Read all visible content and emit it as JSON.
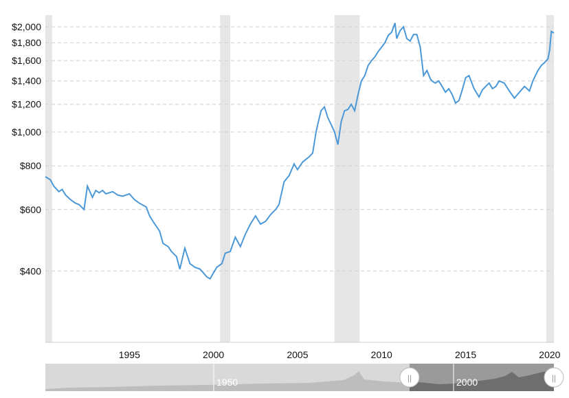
{
  "chart_data": {
    "type": "line",
    "title": "",
    "xlabel": "",
    "ylabel": "",
    "log_scale": true,
    "x_range": [
      1990.0,
      2020.25
    ],
    "ylim": [
      250,
      2160
    ],
    "y_ticks": [
      400,
      600,
      800,
      1000,
      1200,
      1400,
      1600,
      1800,
      2000
    ],
    "y_tick_labels": [
      "$400",
      "$600",
      "$800",
      "$1,000",
      "$1,200",
      "$1,400",
      "$1,600",
      "$1,800",
      "$2,000"
    ],
    "x_ticks": [
      1995,
      2000,
      2005,
      2010,
      2015,
      2020
    ],
    "x_tick_labels": [
      "1995",
      "2000",
      "2005",
      "2010",
      "2015",
      "2020"
    ],
    "grid": "horizontal dashed",
    "line_color": "#4a98d8",
    "recession_color": "#e6e6e6",
    "recession_periods": [
      [
        1990.0,
        1990.4
      ],
      [
        2000.4,
        2001.0
      ],
      [
        2007.2,
        2008.7
      ],
      [
        2019.8,
        2020.25
      ]
    ],
    "series": [
      {
        "x": [
          1990.0,
          1990.3,
          1990.5,
          1990.8,
          1991.0,
          1991.2,
          1991.5,
          1991.8,
          1992.0,
          1992.3,
          1992.5,
          1992.8,
          1993.0,
          1993.2,
          1993.4,
          1993.6,
          1993.8,
          1994.0,
          1994.3,
          1994.6,
          1995.0,
          1995.3,
          1995.6,
          1996.0,
          1996.2,
          1996.4,
          1996.8,
          1997.0,
          1997.3,
          1997.5,
          1997.8,
          1998.0,
          1998.3,
          1998.6,
          1998.9,
          1999.2,
          1999.4,
          1999.6,
          1999.8,
          2000.0,
          2000.2,
          2000.5,
          2000.7,
          2001.0,
          2001.3,
          2001.6,
          2001.9,
          2002.2,
          2002.5,
          2002.8,
          2003.1,
          2003.4,
          2003.7,
          2003.9,
          2004.2,
          2004.5,
          2004.8,
          2005.0,
          2005.3,
          2005.5,
          2005.7,
          2005.9,
          2006.1,
          2006.2,
          2006.4,
          2006.6,
          2006.8,
          2007.0,
          2007.2,
          2007.4,
          2007.6,
          2007.8,
          2008.0,
          2008.2,
          2008.4,
          2008.6,
          2008.8,
          2009.0,
          2009.2,
          2009.4,
          2009.6,
          2009.8,
          2010.0,
          2010.2,
          2010.4,
          2010.6,
          2010.8,
          2010.9,
          2011.0,
          2011.1,
          2011.3,
          2011.5,
          2011.7,
          2011.9,
          2012.1,
          2012.3,
          2012.5,
          2012.7,
          2012.9,
          2013.0,
          2013.2,
          2013.4,
          2013.6,
          2013.8,
          2014.0,
          2014.2,
          2014.4,
          2014.6,
          2014.8,
          2015.0,
          2015.2,
          2015.5,
          2015.8,
          2016.0,
          2016.2,
          2016.4,
          2016.6,
          2016.8,
          2017.0,
          2017.3,
          2017.6,
          2017.9,
          2018.2,
          2018.5,
          2018.8,
          2019.0,
          2019.3,
          2019.5,
          2019.7,
          2019.9,
          2020.0,
          2020.1,
          2020.25
        ],
        "values": [
          745,
          730,
          700,
          675,
          685,
          660,
          640,
          625,
          620,
          600,
          700,
          650,
          680,
          670,
          680,
          665,
          670,
          675,
          660,
          655,
          665,
          640,
          625,
          610,
          575,
          555,
          520,
          480,
          470,
          455,
          440,
          405,
          465,
          420,
          410,
          405,
          395,
          385,
          380,
          395,
          410,
          420,
          450,
          455,
          500,
          470,
          510,
          545,
          575,
          545,
          555,
          580,
          600,
          620,
          720,
          750,
          810,
          780,
          820,
          835,
          850,
          870,
          1000,
          1050,
          1150,
          1180,
          1100,
          1050,
          1000,
          920,
          1070,
          1150,
          1160,
          1200,
          1150,
          1280,
          1400,
          1450,
          1550,
          1600,
          1640,
          1700,
          1750,
          1800,
          1890,
          1930,
          2050,
          1850,
          1900,
          1950,
          2000,
          1850,
          1820,
          1900,
          1900,
          1750,
          1450,
          1500,
          1420,
          1400,
          1380,
          1400,
          1350,
          1300,
          1330,
          1280,
          1210,
          1230,
          1320,
          1430,
          1450,
          1330,
          1260,
          1320,
          1350,
          1380,
          1330,
          1350,
          1400,
          1380,
          1310,
          1250,
          1300,
          1350,
          1310,
          1400,
          1500,
          1550,
          1580,
          1620,
          1720,
          1940,
          1920
        ]
      }
    ]
  },
  "navigator": {
    "label_1950": "1950",
    "label_2000": "2000",
    "left_handle_glyph": "||",
    "right_handle_glyph": "||"
  }
}
